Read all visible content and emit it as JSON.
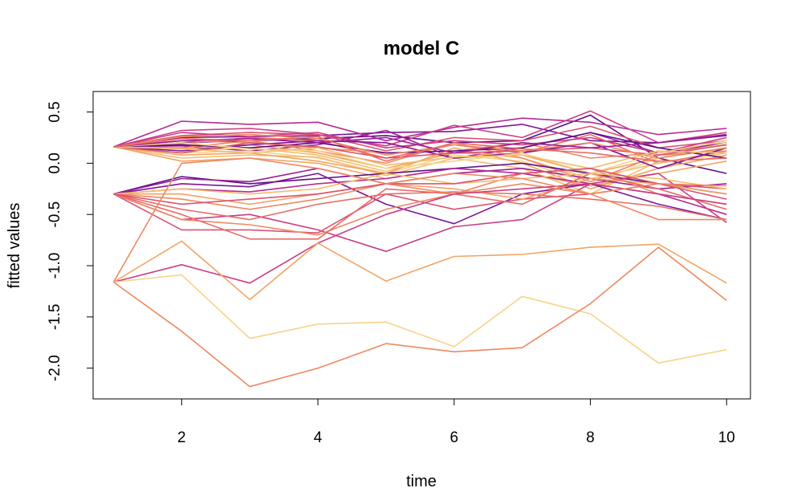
{
  "chart_data": {
    "type": "line",
    "title": "model C",
    "xlabel": "time",
    "ylabel": "fitted values",
    "xlim": [
      0.7,
      10.35
    ],
    "ylim": [
      -2.3,
      0.7
    ],
    "xticks": [
      "2",
      "4",
      "6",
      "8",
      "10"
    ],
    "yticks": [
      "-2.0",
      "-1.5",
      "-1.0",
      "-0.5",
      "0.0",
      "0.5"
    ],
    "grid": false,
    "legend": "none",
    "palette": [
      "#5c0f8a",
      "#7c1696",
      "#9a1f97",
      "#b52b93",
      "#cb3d85",
      "#dc5273",
      "#e86c68",
      "#ee8863",
      "#f1a465",
      "#f3bd6e",
      "#f5d38a"
    ],
    "x": [
      1,
      2,
      3,
      4,
      5,
      6,
      7,
      8,
      9,
      10
    ],
    "series": [
      {
        "color": "#7c1696",
        "values": [
          0.16,
          0.25,
          0.26,
          0.27,
          0.3,
          0.31,
          0.38,
          0.22,
          0.2,
          0.27
        ]
      },
      {
        "color": "#5c0f8a",
        "values": [
          0.16,
          0.2,
          0.22,
          0.24,
          0.27,
          0.2,
          0.22,
          0.47,
          0.05,
          -0.1
        ]
      },
      {
        "color": "#b52b93",
        "values": [
          0.16,
          0.41,
          0.38,
          0.4,
          0.22,
          0.35,
          0.44,
          0.4,
          0.28,
          0.34
        ]
      },
      {
        "color": "#cb3d85",
        "values": [
          0.16,
          0.32,
          0.34,
          0.28,
          0.17,
          0.37,
          0.25,
          0.51,
          0.2,
          0.3
        ]
      },
      {
        "color": "#9a1f97",
        "values": [
          0.16,
          0.17,
          0.12,
          0.18,
          0.32,
          0.05,
          0.15,
          0.3,
          0.1,
          0.2
        ]
      },
      {
        "color": "#dc5273",
        "values": [
          0.16,
          0.27,
          0.3,
          0.28,
          0.12,
          0.25,
          0.22,
          0.36,
          0.15,
          0.22
        ]
      },
      {
        "color": "#e86c68",
        "values": [
          0.16,
          0.19,
          0.25,
          0.22,
          0.05,
          0.18,
          0.1,
          0.28,
          0.0,
          0.12
        ]
      },
      {
        "color": "#ee8863",
        "values": [
          0.16,
          0.22,
          0.2,
          0.15,
          0.1,
          0.12,
          0.2,
          0.05,
          0.1,
          0.18
        ]
      },
      {
        "color": "#f1a465",
        "values": [
          0.16,
          0.14,
          0.18,
          0.1,
          -0.05,
          0.1,
          0.08,
          -0.1,
          0.05,
          0.15
        ]
      },
      {
        "color": "#f3bd6e",
        "values": [
          0.16,
          0.12,
          0.15,
          0.08,
          -0.08,
          0.12,
          0.05,
          -0.15,
          0.0,
          0.1
        ]
      },
      {
        "color": "#f5d38a",
        "values": [
          0.16,
          0.1,
          0.12,
          0.05,
          -0.1,
          0.08,
          0.02,
          -0.2,
          0.05,
          0.2
        ]
      },
      {
        "color": "#f3bd6e",
        "values": [
          0.16,
          0.05,
          0.08,
          0.06,
          -0.12,
          0.05,
          -0.05,
          -0.3,
          0.02,
          0.05
        ]
      },
      {
        "color": "#f1a465",
        "values": [
          0.16,
          0.08,
          0.1,
          0.02,
          -0.1,
          0.15,
          0.0,
          -0.25,
          -0.05,
          0.08
        ]
      },
      {
        "color": "#ee8863",
        "values": [
          0.16,
          0.15,
          0.22,
          0.12,
          0.0,
          0.2,
          0.05,
          -0.18,
          0.08,
          0.12
        ]
      },
      {
        "color": "#cb3d85",
        "values": [
          0.16,
          0.3,
          0.26,
          0.3,
          0.15,
          0.22,
          0.18,
          0.25,
          0.1,
          0.25
        ]
      },
      {
        "color": "#5c0f8a",
        "values": [
          0.16,
          0.18,
          0.15,
          0.2,
          0.1,
          0.12,
          0.15,
          0.3,
          0.15,
          0.05
        ]
      },
      {
        "color": "#7c1696",
        "values": [
          0.16,
          0.12,
          0.18,
          0.22,
          0.2,
          0.05,
          0.1,
          0.2,
          -0.05,
          0.15
        ]
      },
      {
        "color": "#dc5273",
        "values": [
          0.16,
          0.1,
          0.2,
          0.16,
          0.05,
          0.1,
          0.12,
          0.15,
          0.08,
          0.18
        ]
      },
      {
        "color": "#f5d38a",
        "values": [
          0.16,
          0.2,
          0.14,
          0.12,
          -0.05,
          0.02,
          0.1,
          -0.1,
          0.1,
          0.22
        ]
      },
      {
        "color": "#f1a465",
        "values": [
          0.16,
          0.02,
          0.05,
          0.0,
          -0.15,
          -0.05,
          -0.1,
          -0.22,
          -0.1,
          0.02
        ]
      },
      {
        "color": "#ee8863",
        "values": [
          0.16,
          0.26,
          0.28,
          0.24,
          0.08,
          0.18,
          0.12,
          0.2,
          0.05,
          0.15
        ]
      },
      {
        "color": "#f3bd6e",
        "values": [
          0.16,
          0.14,
          0.1,
          0.15,
          -0.02,
          0.06,
          0.08,
          -0.05,
          0.12,
          0.1
        ]
      },
      {
        "color": "#9a1f97",
        "values": [
          0.16,
          0.22,
          0.24,
          0.2,
          0.25,
          0.1,
          0.2,
          0.15,
          0.2,
          0.28
        ]
      },
      {
        "color": "#e86c68",
        "values": [
          0.16,
          0.24,
          0.22,
          0.26,
          0.02,
          0.2,
          0.14,
          0.1,
          0.02,
          0.05
        ]
      },
      {
        "color": "#5c0f8a",
        "values": [
          -0.3,
          -0.13,
          -0.2,
          -0.15,
          -0.1,
          -0.05,
          0.0,
          -0.1,
          -0.2,
          -0.3
        ]
      },
      {
        "color": "#7c1696",
        "values": [
          -0.3,
          -0.2,
          -0.23,
          -0.1,
          -0.4,
          -0.59,
          -0.3,
          -0.2,
          -0.4,
          -0.55
        ]
      },
      {
        "color": "#9a1f97",
        "values": [
          -0.3,
          -0.15,
          -0.18,
          -0.05,
          -0.2,
          -0.1,
          -0.05,
          -0.15,
          -0.25,
          -0.2
        ]
      },
      {
        "color": "#b52b93",
        "values": [
          -0.3,
          -0.25,
          -0.28,
          -0.2,
          -0.15,
          -0.05,
          -0.1,
          -0.2,
          -0.3,
          -0.5
        ]
      },
      {
        "color": "#cb3d85",
        "values": [
          -0.3,
          -0.55,
          -0.5,
          -0.65,
          -0.86,
          -0.62,
          -0.55,
          -0.2,
          -0.1,
          -0.58
        ]
      },
      {
        "color": "#dc5273",
        "values": [
          -0.3,
          -0.65,
          -0.65,
          -0.68,
          -0.3,
          -0.45,
          -0.35,
          -0.3,
          -0.2,
          -0.25
        ]
      },
      {
        "color": "#e86c68",
        "values": [
          -0.3,
          -0.45,
          -0.55,
          -0.4,
          -0.3,
          -0.28,
          -0.3,
          -0.35,
          -0.42,
          -0.55
        ]
      },
      {
        "color": "#ee8863",
        "values": [
          -0.3,
          -0.55,
          -0.6,
          -0.7,
          -0.45,
          -0.3,
          -0.2,
          -0.3,
          -0.55,
          -0.55
        ]
      },
      {
        "color": "#f1a465",
        "values": [
          -0.3,
          -0.3,
          -0.4,
          -0.3,
          -0.2,
          -0.25,
          -0.35,
          -0.15,
          -0.2,
          -0.3
        ]
      },
      {
        "color": "#e86c68",
        "values": [
          -0.3,
          -0.5,
          -0.74,
          -0.74,
          -0.25,
          -0.3,
          -0.4,
          -0.1,
          -0.25,
          -0.45
        ]
      },
      {
        "color": "#ee8863",
        "values": [
          -0.3,
          -0.35,
          -0.45,
          -0.35,
          -0.2,
          -0.3,
          -0.1,
          -0.05,
          -0.3,
          -0.4
        ]
      },
      {
        "color": "#f3bd6e",
        "values": [
          -0.3,
          -0.25,
          -0.3,
          -0.25,
          -0.1,
          -0.2,
          -0.15,
          -0.1,
          -0.15,
          -0.25
        ]
      },
      {
        "color": "#dc5273",
        "values": [
          -0.3,
          -0.4,
          -0.35,
          -0.3,
          -0.2,
          -0.2,
          -0.1,
          -0.05,
          -0.2,
          -0.35
        ]
      },
      {
        "color": "#cb3d85",
        "values": [
          -1.16,
          -0.99,
          -1.17,
          -0.78,
          -0.5,
          -0.3,
          -0.25,
          -0.2,
          -0.3,
          -0.4
        ]
      },
      {
        "color": "#f1a465",
        "values": [
          -1.16,
          -0.76,
          -1.33,
          -0.78,
          -1.15,
          -0.91,
          -0.89,
          -0.82,
          -0.79,
          -1.17
        ]
      },
      {
        "color": "#f5d38a",
        "values": [
          -1.16,
          -1.09,
          -1.71,
          -1.57,
          -1.55,
          -1.79,
          -1.3,
          -1.47,
          -1.95,
          -1.82
        ]
      },
      {
        "color": "#ee8863",
        "values": [
          -1.16,
          -1.64,
          -2.18,
          -2.0,
          -1.76,
          -1.84,
          -1.8,
          -1.37,
          -0.82,
          -1.34
        ]
      },
      {
        "color": "#ee8863",
        "values": [
          -1.16,
          0.0,
          0.05,
          -0.05,
          -0.2,
          -0.1,
          -0.15,
          -0.3,
          -0.2,
          -0.22
        ]
      }
    ]
  }
}
